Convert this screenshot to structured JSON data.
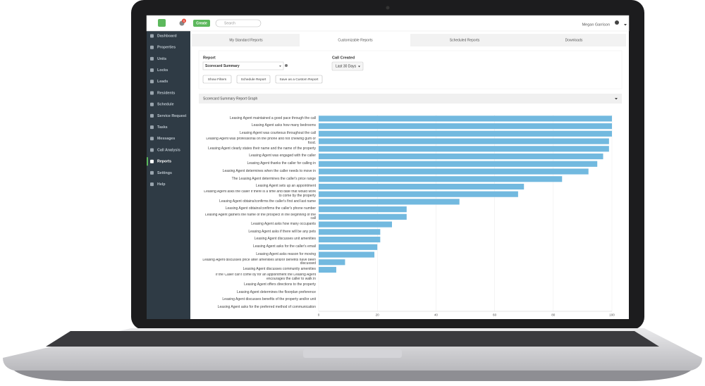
{
  "header": {
    "badge": "5",
    "create": "Create",
    "search": "Search",
    "user": "Megan Garrison"
  },
  "sidebar": [
    "Dashboard",
    "Properties",
    "Units",
    "Locks",
    "Leads",
    "Residents",
    "Schedule",
    "Service Request",
    "Tasks",
    "Messages",
    "Call Analysis",
    "Reports",
    "Settings",
    "Help"
  ],
  "tabs": [
    "My Standard Reports",
    "Customizable Reports",
    "Scheduled Reports",
    "Downloads"
  ],
  "filters": {
    "report_label": "Report",
    "report_value": "Scorecard Summary",
    "call_created_label": "Call Created",
    "call_created_value": "Last 30 Days",
    "buttons": [
      "Show Filters",
      "Schedule Report",
      "Save as a Custom Report"
    ]
  },
  "panel_title": "Scorecard Summary Report Graph",
  "chart_data": {
    "type": "hbar",
    "color": "#72b9df",
    "grid": true,
    "categories": [
      "Leasing Agent maintained a good pace through the call",
      "Leasing Agent asks how many bedrooms",
      "Leasing Agent was courteous throughout the call",
      "Leasing Agent was professional on the phone and not chewing gum or food.",
      "Leasing Agent clearly states their name and the name of the property",
      "Leasing Agent was engaged with the caller",
      "Leasing Agent thanks the caller for calling in",
      "Leasing Agent determines when the caller needs to move in",
      "The Leasing Agent determines the caller's price range",
      "Leasing Agent sets up an appointment",
      "Leasing Agent asks the caller if there is a time and date that would work to come by the property",
      "Leasing Agent obtains/confirms the caller's first and last name",
      "Leasing Agent obtains/confirms the caller's phone number",
      "Leasing Agent gathers the name of the prospect in the beginning of the call",
      "Leasing Agent asks how many occupants",
      "Leasing Agent asks if there will be any pets",
      "Leasing Agent discusses unit amenities",
      "Leasing Agent asks for the caller's email",
      "Leasing Agent asks reason for moving",
      "Leasing Agent discusses price after amenities and/or benefits have been discussed",
      "Leasing Agent discusses community amenities",
      "If the Caller can't come by for an appointment the Leasing Agent encourages the caller to walk in",
      "Leasing Agent offers directions to the property",
      "Leasing Agent determines the floorplan preference",
      "Leasing Agent discusses benefits of the property and/or unit",
      "Leasing Agent asks for the preferred method of communication"
    ],
    "values": [
      100,
      100,
      100,
      99,
      99,
      97,
      95,
      92,
      83,
      70,
      68,
      48,
      30,
      30,
      25,
      21,
      21,
      20,
      19,
      9,
      6,
      0,
      0,
      0,
      0,
      0
    ],
    "xlim": [
      0,
      100
    ],
    "xticks": [
      0,
      20,
      40,
      60,
      80,
      100
    ]
  }
}
